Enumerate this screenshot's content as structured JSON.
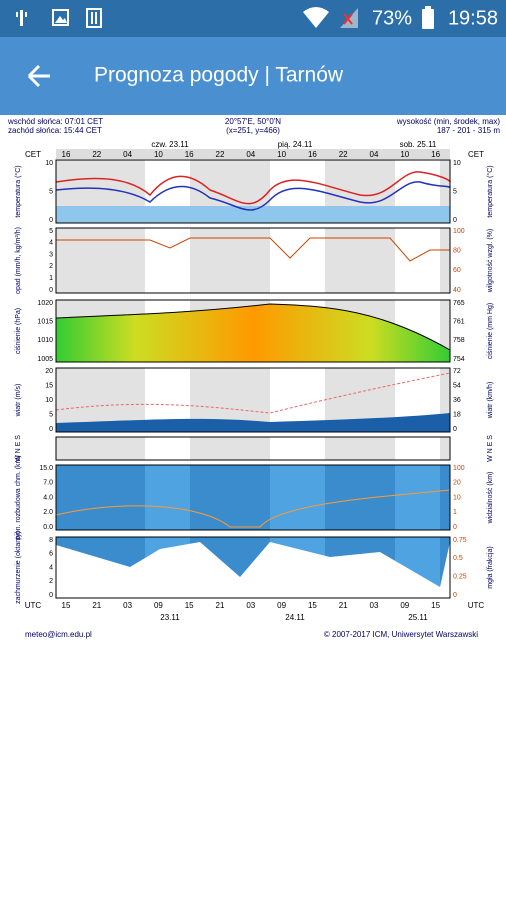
{
  "status_bar": {
    "battery": "73%",
    "time": "19:58"
  },
  "app_bar": {
    "title": "Prognoza pogody | Tarnów"
  },
  "meteogram": {
    "header": {
      "left": [
        "wschód słońca: 07:01 CET",
        "zachód słońca: 15:44 CET"
      ],
      "center": [
        "20°57'E, 50°0'N",
        "(x=251, y=466)"
      ],
      "right": [
        "wysokość (min, środek, max)",
        "187 - 201 - 315 m"
      ]
    },
    "days_top": [
      "czw. 23.11",
      "pią. 24.11",
      "sob. 25.11"
    ],
    "cet_label": "CET",
    "cet_hours": [
      "16",
      "22",
      "04",
      "10",
      "16",
      "22",
      "04",
      "10",
      "16",
      "22",
      "04",
      "10",
      "16"
    ],
    "utc_label": "UTC",
    "utc_hours": [
      "15",
      "21",
      "03",
      "09",
      "15",
      "21",
      "03",
      "09",
      "15",
      "21",
      "03",
      "09",
      "15"
    ],
    "days_bottom": [
      "23.11",
      "24.11",
      "25.11"
    ],
    "panels": [
      {
        "left_label": "temperatura (°C)",
        "right_label": "temperatura (°C)",
        "left_ticks": [
          "10",
          "5",
          "0"
        ],
        "right_ticks": [
          "10",
          "5",
          "0"
        ]
      },
      {
        "left_label": "opad (mm/h, kg/m²/h)",
        "right_label": "wilgotność wzgl. (%)",
        "left_ticks": [
          "5",
          "4",
          "3",
          "2",
          "1",
          "0"
        ],
        "right_ticks": [
          "100",
          "80",
          "60",
          "40"
        ]
      },
      {
        "left_label": "ciśnienie (hPa)",
        "right_label": "ciśnienie (mm Hg)",
        "left_ticks": [
          "1020",
          "1015",
          "1010",
          "1005"
        ],
        "right_ticks": [
          "765",
          "761",
          "758",
          "754"
        ]
      },
      {
        "left_label": "wiatr (m/s)",
        "right_label": "wiatr (km/h)",
        "left_ticks": [
          "20",
          "15",
          "10",
          "5",
          "0"
        ],
        "right_ticks": [
          "72",
          "54",
          "36",
          "18",
          "0"
        ]
      },
      {
        "left_label": "W N E S",
        "right_label": "W N E S",
        "left_ticks": [],
        "right_ticks": []
      },
      {
        "left_label": "pion. rozbudowa chm. (km)",
        "right_label": "widzialność (km)",
        "left_ticks": [
          "15.0",
          "7.0",
          "4.0",
          "2.0",
          "0.0"
        ],
        "right_ticks": [
          "100",
          "20",
          "10",
          "1",
          "0"
        ]
      },
      {
        "left_label": "zachmurzenie (oktanty)",
        "right_label": "mgła (frakcja)",
        "left_ticks": [
          "8",
          "6",
          "4",
          "2",
          "0"
        ],
        "right_ticks": [
          "0.75",
          "0.5",
          "0.25",
          "0"
        ]
      }
    ],
    "footer": {
      "left": "meteo@icm.edu.pl",
      "right": "© 2007-2017 ICM, Uniwersytet Warszawski"
    }
  }
}
